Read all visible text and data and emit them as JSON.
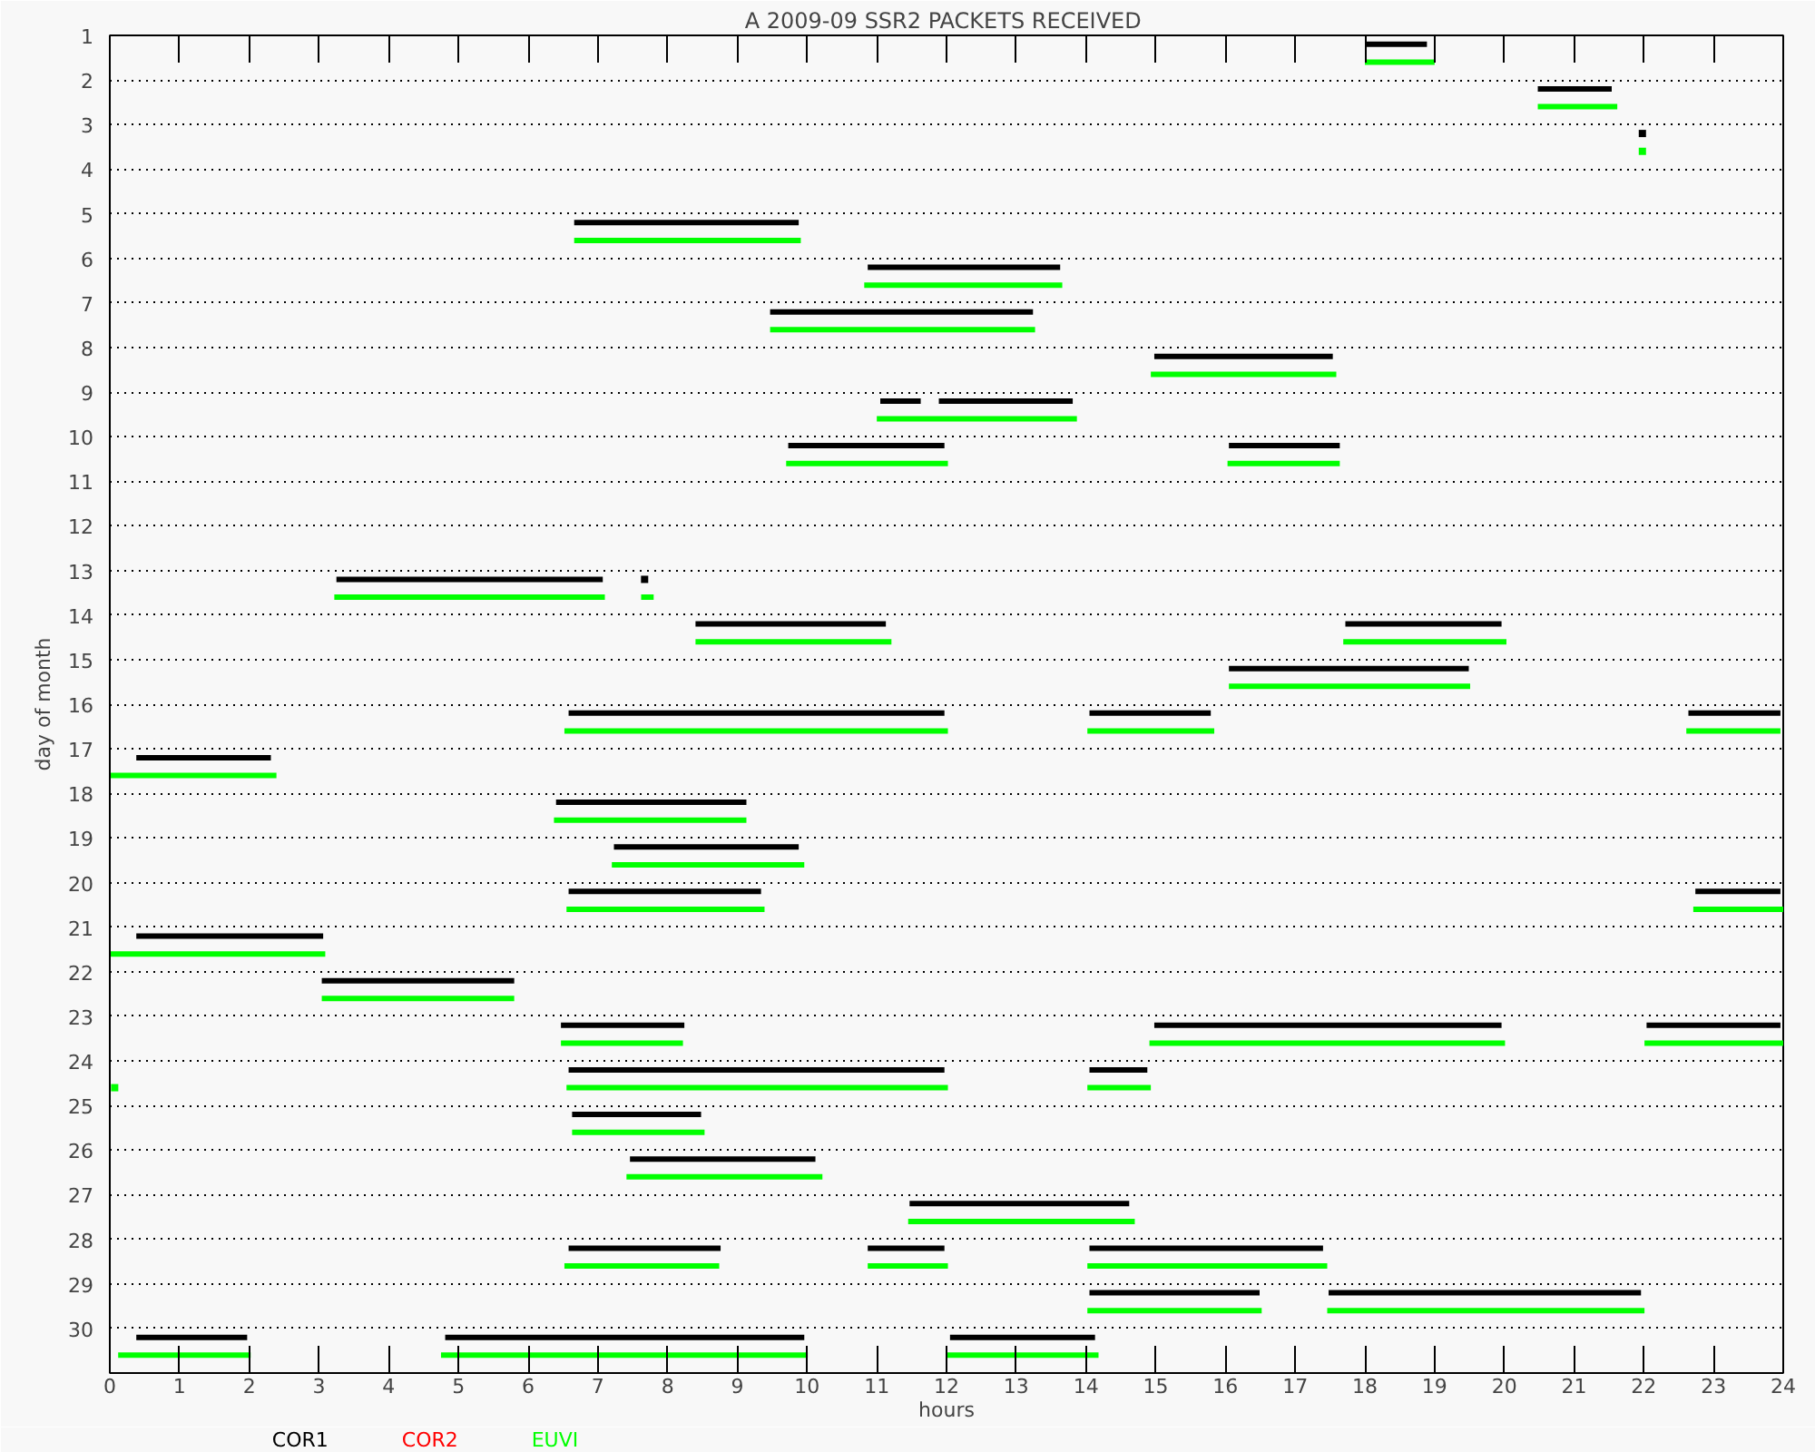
{
  "chart_data": {
    "type": "line",
    "title": "A  2009-09 SSR2 PACKETS RECEIVED",
    "xlabel": "hours",
    "ylabel": "day of month",
    "xlim": [
      0,
      24
    ],
    "xticks": [
      0,
      1,
      2,
      3,
      4,
      5,
      6,
      7,
      8,
      9,
      10,
      11,
      12,
      13,
      14,
      15,
      16,
      17,
      18,
      19,
      20,
      21,
      22,
      23,
      24
    ],
    "ylim": [
      31,
      1
    ],
    "yticks": [
      1,
      2,
      3,
      4,
      5,
      6,
      7,
      8,
      9,
      10,
      11,
      12,
      13,
      14,
      15,
      16,
      17,
      18,
      19,
      20,
      21,
      22,
      23,
      24,
      25,
      26,
      27,
      28,
      29,
      30
    ],
    "grid": "y",
    "line_style": "solid",
    "series": [
      {
        "name": "COR1",
        "color": "#000000",
        "x": [
          18.0,
          18.89,
          null,
          20.48,
          21.54,
          null,
          6.66,
          9.88,
          null,
          10.87,
          13.63,
          null,
          9.47,
          13.24,
          null,
          14.98,
          17.54,
          null,
          11.05,
          11.63,
          null,
          11.89,
          13.81,
          null,
          9.73,
          11.97,
          null,
          16.05,
          17.64,
          null,
          3.25,
          7.07,
          null,
          8.4,
          11.13,
          null,
          17.72,
          19.96,
          null,
          16.05,
          19.49,
          null,
          6.58,
          11.97,
          null,
          14.05,
          15.79,
          null,
          22.64,
          23.96,
          null,
          0.38,
          2.31,
          null,
          6.4,
          9.13,
          null,
          7.23,
          9.88,
          null,
          6.58,
          9.34,
          null,
          22.74,
          23.96,
          null,
          0.38,
          3.06,
          null,
          3.04,
          5.8,
          null,
          6.47,
          8.24,
          null,
          14.98,
          19.96,
          null,
          22.04,
          23.96,
          null,
          6.58,
          9.27,
          11.97,
          null,
          14.05,
          14.88,
          null,
          6.63,
          8.48,
          null,
          7.46,
          10.12,
          null,
          11.47,
          14.62,
          null,
          6.58,
          8.76,
          null,
          10.87,
          11.97,
          null,
          14.05,
          17.4,
          null,
          14.05,
          16.49,
          null,
          17.48,
          21.96,
          null,
          0.38,
          1.97,
          null,
          4.81,
          9.96,
          null,
          12.05,
          14.13
        ],
        "values": [
          1.2,
          1.2,
          null,
          2.2,
          2.2,
          null,
          5.2,
          5.2,
          null,
          6.2,
          6.2,
          null,
          7.2,
          7.2,
          null,
          8.2,
          8.2,
          null,
          9.2,
          9.2,
          null,
          9.2,
          9.2,
          null,
          10.2,
          10.2,
          null,
          10.2,
          10.2,
          null,
          13.2,
          13.2,
          null,
          14.2,
          14.2,
          null,
          14.2,
          14.2,
          null,
          15.2,
          15.2,
          null,
          16.2,
          16.2,
          null,
          16.2,
          16.2,
          null,
          16.2,
          16.2,
          null,
          17.2,
          17.2,
          null,
          18.2,
          18.2,
          null,
          19.2,
          19.2,
          null,
          20.2,
          20.2,
          null,
          20.2,
          20.2,
          null,
          21.2,
          21.2,
          null,
          22.2,
          22.2,
          null,
          23.2,
          23.2,
          null,
          23.2,
          23.2,
          null,
          23.2,
          23.2,
          null,
          24.2,
          24.2,
          24.2,
          null,
          24.2,
          24.2,
          null,
          25.2,
          25.2,
          null,
          26.2,
          26.2,
          null,
          27.2,
          27.2,
          null,
          28.2,
          28.2,
          null,
          28.2,
          28.2,
          null,
          28.2,
          28.2,
          null,
          29.2,
          29.2,
          null,
          29.2,
          29.2,
          null,
          30.2,
          30.2,
          null,
          30.2,
          30.2,
          null,
          30.2,
          30.2
        ]
      },
      {
        "name": "COR2",
        "color": "#ff0000"
      },
      {
        "name": "EUVI",
        "color": "#00ff00",
        "x": [
          18.0,
          19.0,
          null,
          20.48,
          21.62,
          null,
          6.66,
          9.91,
          null,
          10.82,
          13.66,
          null,
          9.47,
          13.27,
          null,
          14.93,
          17.59,
          null,
          11.0,
          13.87,
          null,
          9.7,
          12.02,
          null,
          16.03,
          17.64,
          null,
          3.22,
          7.1,
          null,
          7.62,
          7.8,
          null,
          8.4,
          11.21,
          null,
          17.69,
          20.03,
          null,
          16.05,
          19.51,
          null,
          6.52,
          12.02,
          null,
          14.02,
          15.84,
          null,
          22.61,
          23.96,
          null,
          0.0,
          2.39,
          null,
          6.37,
          9.13,
          null,
          7.2,
          9.96,
          null,
          6.55,
          9.39,
          null,
          22.71,
          24.0,
          null,
          0.0,
          3.09,
          null,
          3.04,
          5.8,
          null,
          6.47,
          8.22,
          null,
          14.91,
          20.01,
          null,
          22.01,
          24.0,
          null,
          6.55,
          12.02,
          null,
          14.02,
          14.93,
          null,
          6.63,
          8.53,
          null,
          7.41,
          10.22,
          null,
          11.45,
          14.7,
          null,
          6.52,
          8.74,
          null,
          10.87,
          12.02,
          null,
          14.02,
          17.46,
          null,
          14.02,
          16.52,
          null,
          17.46,
          22.01,
          null,
          0.12,
          2.02,
          null,
          4.75,
          10.01,
          null,
          11.99,
          14.18
        ],
        "values": [
          1.6,
          1.6,
          null,
          2.6,
          2.6,
          null,
          5.6,
          5.6,
          null,
          6.6,
          6.6,
          null,
          7.6,
          7.6,
          null,
          8.6,
          8.6,
          null,
          9.6,
          9.6,
          null,
          10.6,
          10.6,
          null,
          10.6,
          10.6,
          null,
          13.6,
          13.6,
          null,
          13.6,
          13.6,
          null,
          14.6,
          14.6,
          null,
          14.6,
          14.6,
          null,
          15.6,
          15.6,
          null,
          16.6,
          16.6,
          null,
          16.6,
          16.6,
          null,
          16.6,
          16.6,
          null,
          17.6,
          17.6,
          null,
          18.6,
          18.6,
          null,
          19.6,
          19.6,
          null,
          20.6,
          20.6,
          null,
          20.6,
          20.6,
          null,
          21.6,
          21.6,
          null,
          22.6,
          22.6,
          null,
          23.6,
          23.6,
          null,
          23.6,
          23.6,
          null,
          23.6,
          23.6,
          null,
          24.6,
          24.6,
          null,
          24.6,
          24.6,
          null,
          25.6,
          25.6,
          null,
          26.6,
          26.6,
          null,
          27.6,
          27.6,
          null,
          28.6,
          28.6,
          null,
          28.6,
          28.6,
          null,
          28.6,
          28.6,
          null,
          29.6,
          29.6,
          null,
          29.6,
          29.6,
          null,
          30.6,
          30.6,
          null,
          30.6,
          30.6,
          null,
          30.6,
          30.6
        ]
      },
      {
        "type": "scatter",
        "color": "#000000",
        "marker": "square",
        "x": [
          21.98,
          7.67
        ],
        "values": [
          3.2,
          13.2
        ]
      },
      {
        "type": "scatter",
        "color": "#00ff00",
        "marker": "square",
        "x": [
          21.98,
          0.07
        ],
        "values": [
          3.6,
          24.6
        ]
      }
    ]
  }
}
